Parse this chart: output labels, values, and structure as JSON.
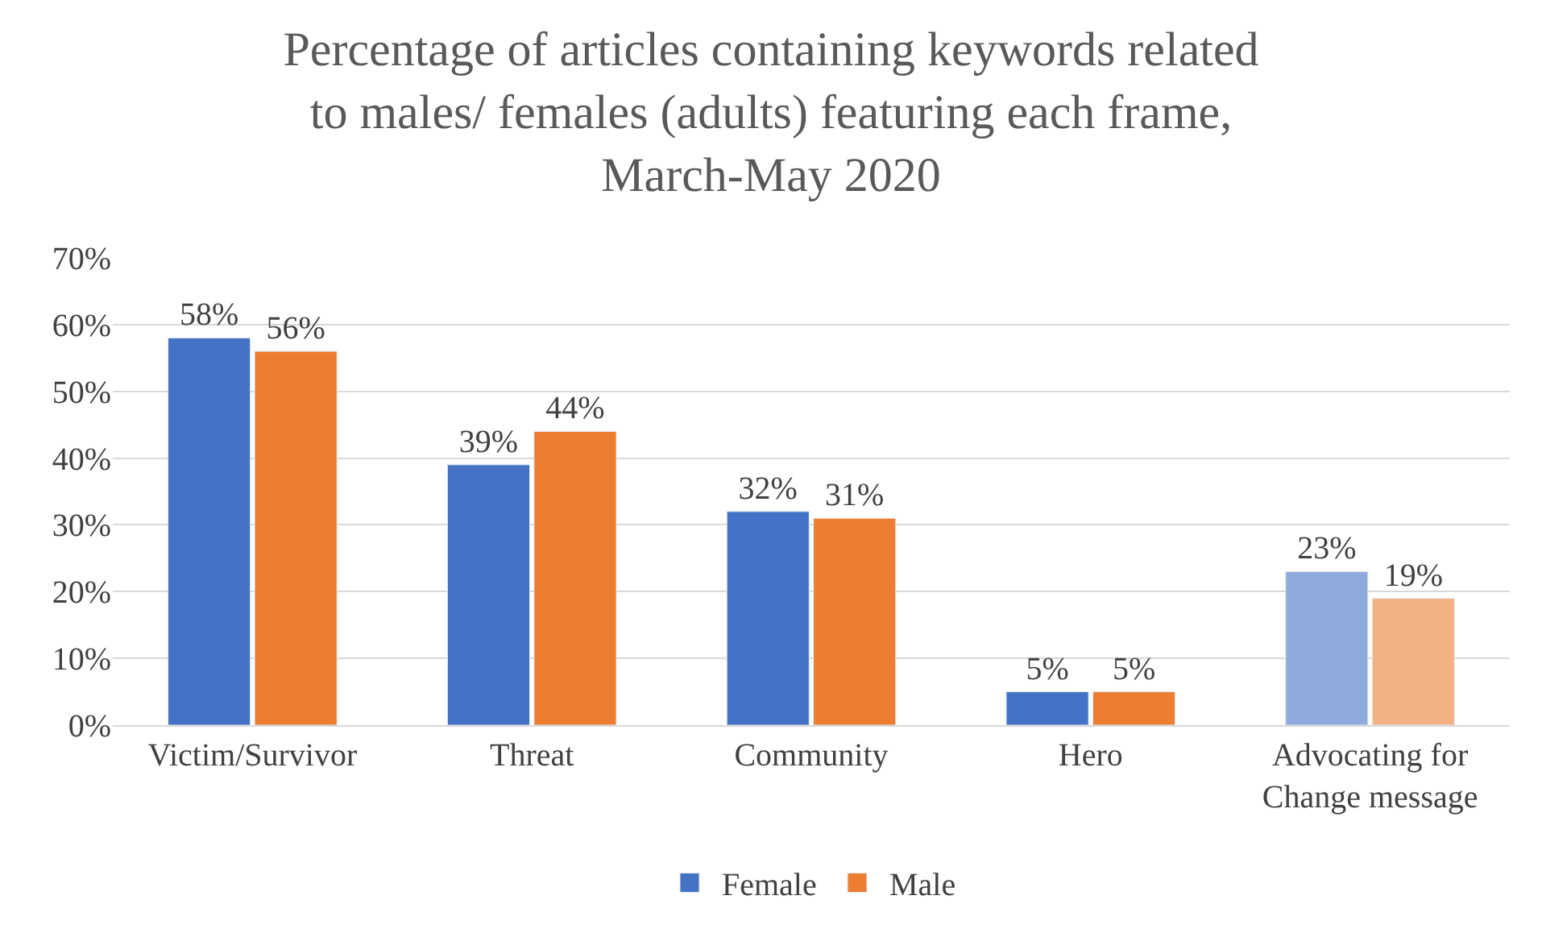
{
  "chart_data": {
    "type": "bar",
    "title": "Percentage of articles containing keywords related to males/ females (adults) featuring each frame, March-May 2020",
    "categories": [
      "Victim/Survivor",
      "Threat",
      "Community",
      "Hero",
      "Advocating for Change message"
    ],
    "series": [
      {
        "name": "Female",
        "color": "#4472c4",
        "colors": [
          null,
          null,
          null,
          null,
          "#8faadc"
        ],
        "values": [
          58,
          39,
          32,
          5,
          23
        ],
        "value_labels": [
          "58%",
          "39%",
          "32%",
          "5%",
          "23%"
        ]
      },
      {
        "name": "Male",
        "color": "#ed7d31",
        "colors": [
          null,
          null,
          null,
          null,
          "#f4b183"
        ],
        "values": [
          56,
          44,
          31,
          5,
          19
        ],
        "value_labels": [
          "56%",
          "44%",
          "31%",
          "5%",
          "19%"
        ]
      }
    ],
    "ylim": [
      0,
      70
    ],
    "yticks": [
      {
        "value": 0,
        "label": "0%"
      },
      {
        "value": 10,
        "label": "10%"
      },
      {
        "value": 20,
        "label": "20%"
      },
      {
        "value": 30,
        "label": "30%"
      },
      {
        "value": 40,
        "label": "40%"
      },
      {
        "value": 50,
        "label": "50%"
      },
      {
        "value": 60,
        "label": "60%"
      },
      {
        "value": 70,
        "label": "70%"
      }
    ],
    "grid": "y",
    "legend": "bottom"
  }
}
